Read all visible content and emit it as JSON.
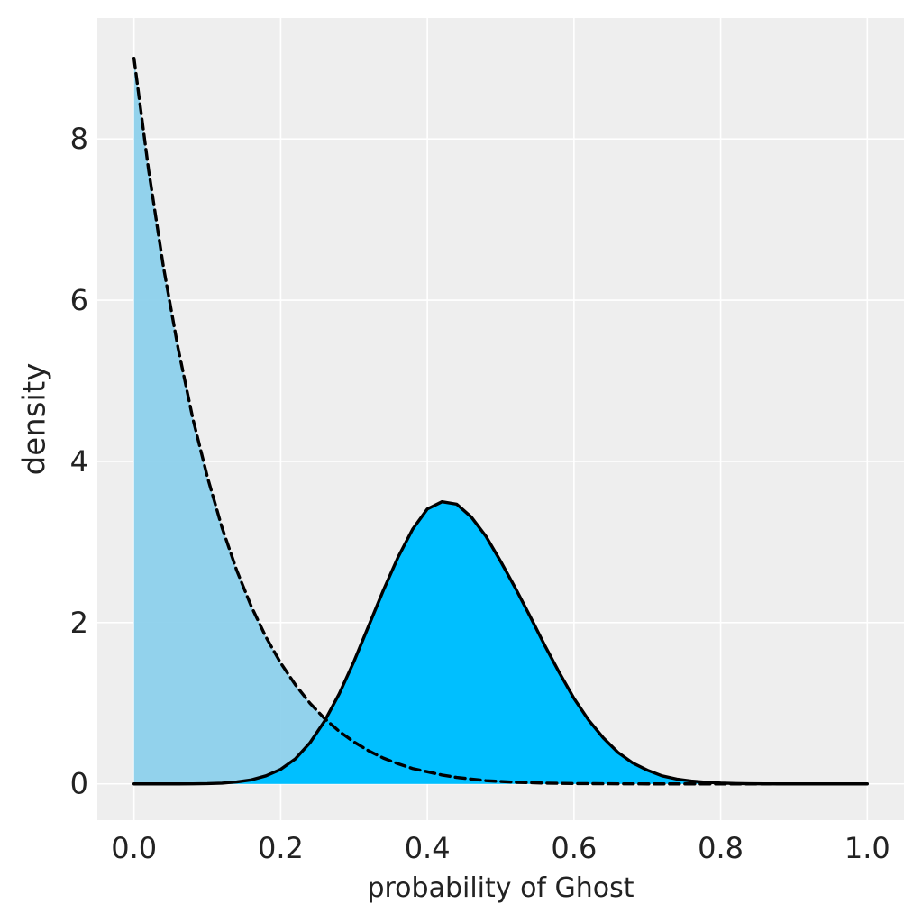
{
  "chart_data": {
    "type": "area",
    "title": "",
    "xlabel": "probability of Ghost",
    "ylabel": "density",
    "xlim": [
      -0.05,
      1.05
    ],
    "ylim": [
      -0.45,
      9.5
    ],
    "xticks": [
      0.0,
      0.2,
      0.4,
      0.6,
      0.8,
      1.0
    ],
    "xtick_labels": [
      "0.0",
      "0.2",
      "0.4",
      "0.6",
      "0.8",
      "1.0"
    ],
    "yticks": [
      0,
      2,
      4,
      6,
      8
    ],
    "ytick_labels": [
      "0",
      "2",
      "4",
      "6",
      "8"
    ],
    "grid": true,
    "background": "#eeeeee",
    "grid_color": "#ffffff",
    "series": [
      {
        "style": "dashed",
        "line_color": "#000000",
        "fill_color": "#87ceeb",
        "fill_opacity": 0.9,
        "x": [
          0.0,
          0.02,
          0.04,
          0.06,
          0.08,
          0.1,
          0.12,
          0.14,
          0.16,
          0.18,
          0.2,
          0.22,
          0.24,
          0.26,
          0.28,
          0.3,
          0.32,
          0.34,
          0.36,
          0.38,
          0.4,
          0.42,
          0.44,
          0.46,
          0.48,
          0.5,
          0.52,
          0.54,
          0.56,
          0.58,
          0.6,
          0.62,
          0.64,
          0.66,
          0.68,
          0.7,
          0.72,
          0.74,
          0.76,
          0.78,
          0.8,
          0.82,
          0.84,
          0.86,
          0.88,
          0.9,
          0.92,
          0.94,
          0.96,
          0.98,
          1.0
        ],
        "y": [
          9.0,
          7.61,
          6.42,
          5.41,
          4.54,
          3.81,
          3.18,
          2.65,
          2.2,
          1.82,
          1.5,
          1.23,
          1.0,
          0.81,
          0.65,
          0.52,
          0.41,
          0.32,
          0.25,
          0.19,
          0.15,
          0.11,
          0.08,
          0.06,
          0.04,
          0.03,
          0.02,
          0.015,
          0.01,
          0.007,
          0.004,
          0.003,
          0.002,
          0.001,
          0.001,
          0.0,
          0.0,
          0.0,
          0.0,
          0.0,
          0.0,
          0.0,
          0.0,
          0.0,
          0.0,
          0.0,
          0.0,
          0.0,
          0.0,
          0.0,
          0.0
        ]
      },
      {
        "style": "solid",
        "line_color": "#000000",
        "fill_color": "#00bfff",
        "fill_opacity": 1.0,
        "x": [
          0.0,
          0.02,
          0.04,
          0.06,
          0.08,
          0.1,
          0.12,
          0.14,
          0.16,
          0.18,
          0.2,
          0.22,
          0.24,
          0.26,
          0.28,
          0.3,
          0.32,
          0.34,
          0.36,
          0.38,
          0.4,
          0.42,
          0.44,
          0.46,
          0.48,
          0.5,
          0.52,
          0.54,
          0.56,
          0.58,
          0.6,
          0.62,
          0.64,
          0.66,
          0.68,
          0.7,
          0.72,
          0.74,
          0.76,
          0.78,
          0.8,
          0.82,
          0.84,
          0.86,
          0.88,
          0.9,
          0.92,
          0.94,
          0.96,
          0.98,
          1.0
        ],
        "y": [
          0.0,
          0.0,
          0.0,
          0.0,
          0.001,
          0.003,
          0.009,
          0.024,
          0.05,
          0.1,
          0.18,
          0.31,
          0.51,
          0.78,
          1.12,
          1.52,
          1.96,
          2.4,
          2.81,
          3.16,
          3.41,
          3.5,
          3.47,
          3.31,
          3.07,
          2.76,
          2.43,
          2.08,
          1.72,
          1.38,
          1.06,
          0.79,
          0.57,
          0.39,
          0.26,
          0.17,
          0.1,
          0.06,
          0.035,
          0.02,
          0.01,
          0.005,
          0.002,
          0.001,
          0.0,
          0.0,
          0.0,
          0.0,
          0.0,
          0.0,
          0.0
        ]
      }
    ]
  }
}
